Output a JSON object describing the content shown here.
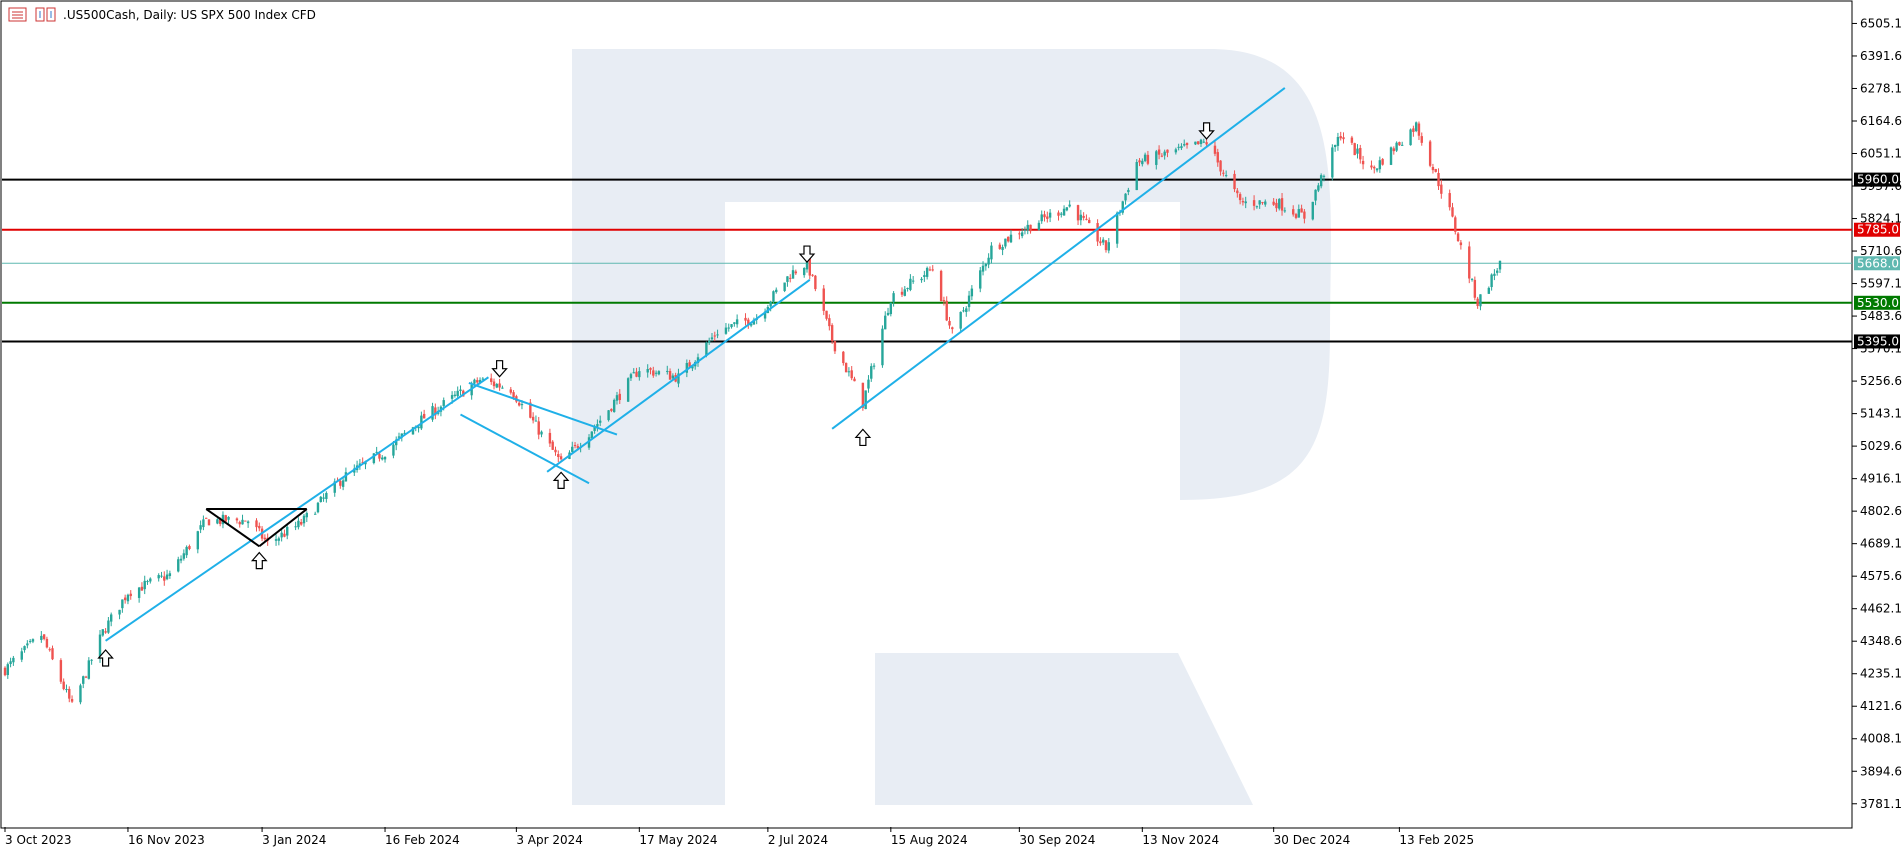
{
  "header": {
    "symbol_title": ".US500Cash, Daily:  US SPX 500 Index CFD"
  },
  "colors": {
    "bull": "#26a69a",
    "bear": "#ef5350",
    "trend": "#1fb0e8",
    "black_level": "#000000",
    "red_level": "#e00000",
    "green_level": "#007a00",
    "current_level": "#5fb8b0",
    "watermark": "#e8edf4"
  },
  "chart_data": {
    "type": "candlestick",
    "ylim": [
      3700,
      6580
    ],
    "y_ticks": [
      "6505.1",
      "6391.6",
      "6278.1",
      "6164.6",
      "6051.1",
      "5937.6",
      "5824.1",
      "5710.6",
      "5597.1",
      "5483.6",
      "5370.1",
      "5256.6",
      "5143.1",
      "5029.6",
      "4916.1",
      "4802.6",
      "4689.1",
      "4575.6",
      "4462.1",
      "4348.6",
      "4235.1",
      "4121.6",
      "4008.1",
      "3894.6",
      "3781.1"
    ],
    "x_ticks": [
      "3 Oct 2023",
      "16 Nov 2023",
      "3 Jan 2024",
      "16 Feb 2024",
      "3 Apr 2024",
      "17 May 2024",
      "2 Jul 2024",
      "15 Aug 2024",
      "30 Sep 2024",
      "13 Nov 2024",
      "30 Dec 2024",
      "13 Feb 2025"
    ],
    "levels": [
      {
        "label": "5960.0",
        "value": 5960.0,
        "color": "black"
      },
      {
        "label": "5785.0",
        "value": 5785.0,
        "color": "red"
      },
      {
        "label": "5668.0",
        "value": 5668.0,
        "color": "current"
      },
      {
        "label": "5530.0",
        "value": 5530.0,
        "color": "green"
      },
      {
        "label": "5395.0",
        "value": 5395.0,
        "color": "black"
      }
    ],
    "anchors": [
      {
        "date": "2023-10-03",
        "close": 4250
      },
      {
        "date": "2023-10-16",
        "close": 4370
      },
      {
        "date": "2023-10-27",
        "close": 4120
      },
      {
        "date": "2023-11-07",
        "close": 4380
      },
      {
        "date": "2023-11-16",
        "close": 4520
      },
      {
        "date": "2023-12-01",
        "close": 4580
      },
      {
        "date": "2023-12-14",
        "close": 4770
      },
      {
        "date": "2023-12-29",
        "close": 4770
      },
      {
        "date": "2024-01-05",
        "close": 4690
      },
      {
        "date": "2024-01-17",
        "close": 4760
      },
      {
        "date": "2024-02-01",
        "close": 4920
      },
      {
        "date": "2024-02-16",
        "close": 5010
      },
      {
        "date": "2024-03-01",
        "close": 5130
      },
      {
        "date": "2024-03-21",
        "close": 5260
      },
      {
        "date": "2024-04-01",
        "close": 5230
      },
      {
        "date": "2024-04-19",
        "close": 4970
      },
      {
        "date": "2024-05-03",
        "close": 5120
      },
      {
        "date": "2024-05-17",
        "close": 5300
      },
      {
        "date": "2024-05-31",
        "close": 5270
      },
      {
        "date": "2024-06-14",
        "close": 5430
      },
      {
        "date": "2024-06-28",
        "close": 5480
      },
      {
        "date": "2024-07-10",
        "close": 5630
      },
      {
        "date": "2024-07-16",
        "close": 5670
      },
      {
        "date": "2024-07-25",
        "close": 5400
      },
      {
        "date": "2024-08-05",
        "close": 5180
      },
      {
        "date": "2024-08-15",
        "close": 5550
      },
      {
        "date": "2024-08-30",
        "close": 5650
      },
      {
        "date": "2024-09-06",
        "close": 5420
      },
      {
        "date": "2024-09-20",
        "close": 5720
      },
      {
        "date": "2024-09-30",
        "close": 5780
      },
      {
        "date": "2024-10-18",
        "close": 5870
      },
      {
        "date": "2024-10-31",
        "close": 5720
      },
      {
        "date": "2024-11-11",
        "close": 6020
      },
      {
        "date": "2024-12-06",
        "close": 6090
      },
      {
        "date": "2024-12-18",
        "close": 5880
      },
      {
        "date": "2024-12-31",
        "close": 5880
      },
      {
        "date": "2025-01-10",
        "close": 5830
      },
      {
        "date": "2025-01-23",
        "close": 6120
      },
      {
        "date": "2025-02-03",
        "close": 5990
      },
      {
        "date": "2025-02-19",
        "close": 6150
      },
      {
        "date": "2025-03-03",
        "close": 5850
      },
      {
        "date": "2025-03-13",
        "close": 5530
      },
      {
        "date": "2025-03-21",
        "close": 5668
      }
    ],
    "trendlines": [
      {
        "from": [
          "2023-11-08",
          4350
        ],
        "to": [
          "2024-03-24",
          5270
        ]
      },
      {
        "from": [
          "2024-03-14",
          5140
        ],
        "to": [
          "2024-04-29",
          4900
        ]
      },
      {
        "from": [
          "2024-03-17",
          5250
        ],
        "to": [
          "2024-05-09",
          5070
        ]
      },
      {
        "from": [
          "2024-04-14",
          4940
        ],
        "to": [
          "2024-07-17",
          5610
        ]
      },
      {
        "from": [
          "2024-07-25",
          5090
        ],
        "to": [
          "2025-01-03",
          6280
        ]
      },
      {
        "from": [
          "2023-12-14",
          4810
        ],
        "to": [
          "2024-01-19",
          4810
        ],
        "color": "black"
      },
      {
        "from": [
          "2023-12-14",
          4810
        ],
        "to": [
          "2024-01-02",
          4680
        ],
        "color": "black"
      },
      {
        "from": [
          "2024-01-02",
          4680
        ],
        "to": [
          "2024-01-19",
          4810
        ],
        "color": "black"
      }
    ],
    "arrows": [
      {
        "dir": "up",
        "date": "2023-11-08",
        "price": 4290
      },
      {
        "dir": "up",
        "date": "2024-01-02",
        "price": 4630
      },
      {
        "dir": "down",
        "date": "2024-03-28",
        "price": 5300
      },
      {
        "dir": "up",
        "date": "2024-04-19",
        "price": 4910
      },
      {
        "dir": "down",
        "date": "2024-07-16",
        "price": 5700
      },
      {
        "dir": "up",
        "date": "2024-08-05",
        "price": 5060
      },
      {
        "dir": "down",
        "date": "2024-12-06",
        "price": 6130
      }
    ]
  }
}
